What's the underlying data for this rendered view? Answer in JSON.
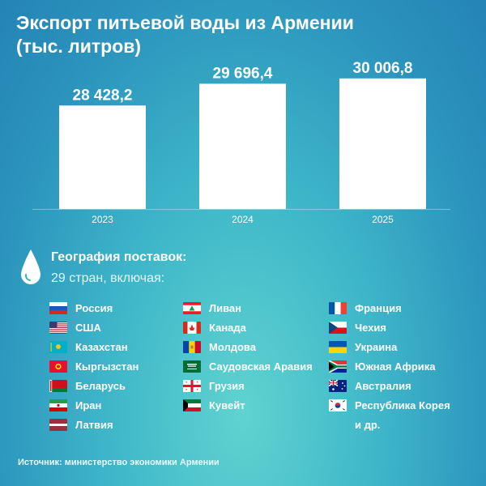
{
  "title": {
    "line1": "Экспорт питьевой воды из Армении",
    "line2": "(тыс. литров)"
  },
  "chart_data": {
    "type": "bar",
    "title": "Экспорт питьевой воды из Армении (тыс. литров)",
    "categories": [
      "2023",
      "2024",
      "2025"
    ],
    "values": [
      28428.2,
      29696.4,
      30006.8
    ],
    "value_labels": [
      "28 428,2",
      "29 696,4",
      "30 006,8"
    ],
    "xlabel": "",
    "ylabel": "",
    "ylim": [
      22400,
      30800
    ],
    "grid": false,
    "bar_color": "#ffffff"
  },
  "geography": {
    "icon": "water-drop-icon",
    "title": "География поставок:",
    "subtitle": "29 стран, включая:",
    "columns": [
      [
        {
          "name": "Россия",
          "flag": "russia"
        },
        {
          "name": "США",
          "flag": "usa"
        },
        {
          "name": "Казахстан",
          "flag": "kazakhstan"
        },
        {
          "name": "Кыргызстан",
          "flag": "kyrgyzstan"
        },
        {
          "name": "Беларусь",
          "flag": "belarus"
        },
        {
          "name": "Иран",
          "flag": "iran"
        },
        {
          "name": "Латвия",
          "flag": "latvia"
        }
      ],
      [
        {
          "name": "Ливан",
          "flag": "lebanon"
        },
        {
          "name": "Канада",
          "flag": "canada"
        },
        {
          "name": "Молдова",
          "flag": "moldova"
        },
        {
          "name": "Саудовская Аравия",
          "flag": "saudi-arabia"
        },
        {
          "name": "Грузия",
          "flag": "georgia"
        },
        {
          "name": "Кувейт",
          "flag": "kuwait"
        }
      ],
      [
        {
          "name": "Франция",
          "flag": "france"
        },
        {
          "name": "Чехия",
          "flag": "czechia"
        },
        {
          "name": "Украина",
          "flag": "ukraine"
        },
        {
          "name": "Южная Африка",
          "flag": "south-africa"
        },
        {
          "name": "Австралия",
          "flag": "australia"
        },
        {
          "name": "Республика Корея",
          "flag": "south-korea"
        },
        {
          "name": "и др.",
          "flag": ""
        }
      ]
    ]
  },
  "source": "Источник: министерство экономики Армении"
}
